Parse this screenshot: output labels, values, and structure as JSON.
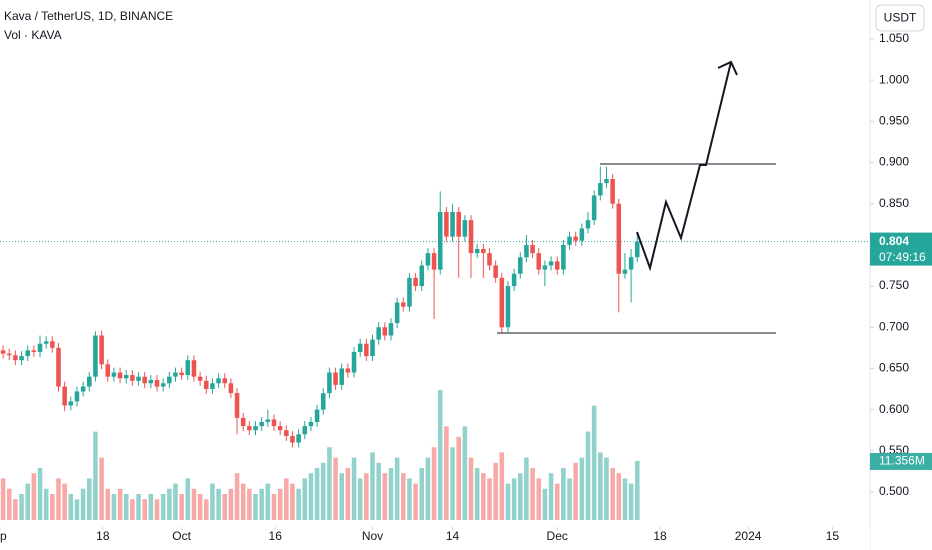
{
  "chart_data": {
    "type": "candlestick",
    "title": "Kava / TetherUS, 1D, BINANCE",
    "subtitle": "Vol · KAVA",
    "currency": "USDT",
    "countdown": "07:49:16",
    "up_color": "#26a69a",
    "down_color": "#ef5350",
    "ylim": [
      0.4575,
      1.0973
    ],
    "yticks": [
      {
        "value": 0.5,
        "label": "0.500"
      },
      {
        "value": 0.55,
        "label": "0.550"
      },
      {
        "value": 0.6,
        "label": "0.600"
      },
      {
        "value": 0.65,
        "label": "0.650"
      },
      {
        "value": 0.7,
        "label": "0.700"
      },
      {
        "value": 0.75,
        "label": "0.750"
      },
      {
        "value": 0.8,
        "label": "0.800"
      },
      {
        "value": 0.85,
        "label": "0.850"
      },
      {
        "value": 0.9,
        "label": "0.900"
      },
      {
        "value": 0.95,
        "label": "0.950"
      },
      {
        "value": 1.0,
        "label": "1.000"
      },
      {
        "value": 1.05,
        "label": "1.050"
      }
    ],
    "xlim": [
      -0.5,
      140.8
    ],
    "xticks": [
      {
        "value": -0.5,
        "label": "ep"
      },
      {
        "value": 16.2,
        "label": "18"
      },
      {
        "value": 29,
        "label": "Oct"
      },
      {
        "value": 44.2,
        "label": "16"
      },
      {
        "value": 60,
        "label": "Nov"
      },
      {
        "value": 73,
        "label": "14"
      },
      {
        "value": 90,
        "label": "Dec"
      },
      {
        "value": 106.7,
        "label": "18"
      },
      {
        "value": 121,
        "label": "2024"
      },
      {
        "value": 134.7,
        "label": "15"
      }
    ],
    "series": [
      {
        "open": [
          0.672,
          0.668,
          0.666,
          0.66,
          0.665,
          0.672,
          0.67,
          0.68,
          0.683,
          0.675,
          0.628,
          0.605,
          0.61,
          0.622,
          0.628,
          0.64,
          0.69,
          0.655,
          0.64,
          0.645,
          0.638,
          0.642,
          0.635,
          0.64,
          0.632,
          0.636,
          0.628,
          0.632,
          0.64,
          0.645,
          0.642,
          0.66,
          0.64,
          0.635,
          0.625,
          0.632,
          0.638,
          0.632,
          0.62,
          0.59,
          0.58,
          0.575,
          0.58,
          0.585,
          0.588,
          0.58,
          0.575,
          0.568,
          0.56,
          0.57,
          0.58,
          0.585,
          0.6,
          0.62,
          0.645,
          0.63,
          0.65,
          0.645,
          0.67,
          0.68,
          0.665,
          0.685,
          0.7,
          0.69,
          0.705,
          0.73,
          0.725,
          0.76,
          0.75,
          0.775,
          0.79,
          0.77,
          0.84,
          0.81,
          0.84,
          0.81,
          0.83,
          0.79,
          0.795,
          0.79,
          0.775,
          0.76,
          0.7,
          0.75,
          0.765,
          0.785,
          0.8,
          0.79,
          0.77,
          0.775,
          0.78,
          0.77,
          0.8,
          0.81,
          0.805,
          0.82,
          0.83,
          0.86,
          0.875,
          0.88,
          0.85,
          0.765,
          0.77,
          0.785
        ],
        "high": [
          0.678,
          0.674,
          0.672,
          0.671,
          0.678,
          0.678,
          0.69,
          0.689,
          0.689,
          0.681,
          0.634,
          0.616,
          0.628,
          0.634,
          0.646,
          0.695,
          0.696,
          0.661,
          0.651,
          0.651,
          0.648,
          0.648,
          0.646,
          0.646,
          0.642,
          0.642,
          0.638,
          0.646,
          0.651,
          0.651,
          0.666,
          0.666,
          0.646,
          0.641,
          0.638,
          0.644,
          0.644,
          0.638,
          0.626,
          0.596,
          0.586,
          0.586,
          0.591,
          0.6,
          0.594,
          0.586,
          0.581,
          0.574,
          0.576,
          0.586,
          0.591,
          0.606,
          0.626,
          0.651,
          0.651,
          0.656,
          0.656,
          0.676,
          0.686,
          0.686,
          0.691,
          0.706,
          0.706,
          0.711,
          0.736,
          0.736,
          0.766,
          0.766,
          0.781,
          0.796,
          0.796,
          0.865,
          0.846,
          0.85,
          0.846,
          0.836,
          0.836,
          0.801,
          0.801,
          0.796,
          0.781,
          0.766,
          0.756,
          0.771,
          0.791,
          0.812,
          0.806,
          0.796,
          0.781,
          0.786,
          0.786,
          0.806,
          0.816,
          0.816,
          0.826,
          0.84,
          0.866,
          0.895,
          0.895,
          0.886,
          0.856,
          0.79,
          0.795,
          0.815
        ],
        "low": [
          0.662,
          0.66,
          0.654,
          0.654,
          0.659,
          0.664,
          0.664,
          0.674,
          0.669,
          0.622,
          0.598,
          0.599,
          0.604,
          0.616,
          0.622,
          0.634,
          0.649,
          0.634,
          0.634,
          0.632,
          0.632,
          0.629,
          0.629,
          0.626,
          0.626,
          0.622,
          0.622,
          0.626,
          0.634,
          0.636,
          0.636,
          0.634,
          0.629,
          0.619,
          0.619,
          0.626,
          0.626,
          0.614,
          0.57,
          0.574,
          0.569,
          0.569,
          0.574,
          0.579,
          0.574,
          0.569,
          0.562,
          0.554,
          0.554,
          0.564,
          0.574,
          0.579,
          0.594,
          0.614,
          0.624,
          0.624,
          0.639,
          0.639,
          0.664,
          0.659,
          0.659,
          0.679,
          0.684,
          0.684,
          0.699,
          0.719,
          0.719,
          0.744,
          0.744,
          0.769,
          0.71,
          0.764,
          0.804,
          0.804,
          0.76,
          0.804,
          0.76,
          0.784,
          0.76,
          0.769,
          0.754,
          0.693,
          0.694,
          0.744,
          0.759,
          0.779,
          0.784,
          0.764,
          0.75,
          0.769,
          0.764,
          0.764,
          0.794,
          0.799,
          0.799,
          0.814,
          0.824,
          0.854,
          0.869,
          0.844,
          0.718,
          0.759,
          0.73,
          0.779
        ],
        "close": [
          0.668,
          0.666,
          0.66,
          0.665,
          0.672,
          0.67,
          0.68,
          0.683,
          0.675,
          0.628,
          0.605,
          0.61,
          0.622,
          0.628,
          0.64,
          0.69,
          0.655,
          0.64,
          0.645,
          0.638,
          0.642,
          0.635,
          0.64,
          0.632,
          0.636,
          0.628,
          0.632,
          0.64,
          0.645,
          0.642,
          0.66,
          0.64,
          0.635,
          0.625,
          0.632,
          0.638,
          0.632,
          0.62,
          0.59,
          0.58,
          0.575,
          0.58,
          0.585,
          0.588,
          0.58,
          0.575,
          0.568,
          0.56,
          0.57,
          0.58,
          0.585,
          0.6,
          0.62,
          0.645,
          0.63,
          0.65,
          0.645,
          0.67,
          0.68,
          0.665,
          0.685,
          0.7,
          0.69,
          0.705,
          0.73,
          0.725,
          0.76,
          0.75,
          0.775,
          0.79,
          0.77,
          0.84,
          0.81,
          0.84,
          0.81,
          0.83,
          0.79,
          0.795,
          0.79,
          0.775,
          0.76,
          0.7,
          0.75,
          0.765,
          0.785,
          0.8,
          0.79,
          0.77,
          0.775,
          0.78,
          0.77,
          0.8,
          0.81,
          0.805,
          0.82,
          0.83,
          0.86,
          0.875,
          0.88,
          0.85,
          0.765,
          0.77,
          0.785,
          0.804
        ]
      }
    ],
    "volume": {
      "values": [
        8,
        6,
        4,
        5,
        7,
        9,
        10,
        6,
        5,
        8,
        7,
        5,
        4,
        6,
        8,
        17,
        12,
        6,
        5,
        6,
        5,
        4,
        5,
        4,
        5,
        4,
        5,
        6,
        7,
        5,
        8,
        6,
        5,
        4,
        7,
        6,
        5,
        6,
        9,
        7,
        6,
        5,
        6,
        7,
        5,
        6,
        8,
        7,
        6,
        8,
        9,
        10,
        11,
        14,
        12,
        9,
        10,
        12,
        8,
        9,
        13,
        11,
        9,
        10,
        12,
        9,
        8,
        7,
        10,
        12,
        14,
        25,
        18,
        14,
        16,
        18,
        12,
        10,
        9,
        8,
        11,
        13,
        7,
        8,
        9,
        12,
        10,
        8,
        6,
        9,
        7,
        10,
        8,
        11,
        12,
        17,
        22,
        13,
        12,
        10,
        9,
        8,
        7,
        11.356
      ],
      "value_label": "11.356M"
    }
  }
}
